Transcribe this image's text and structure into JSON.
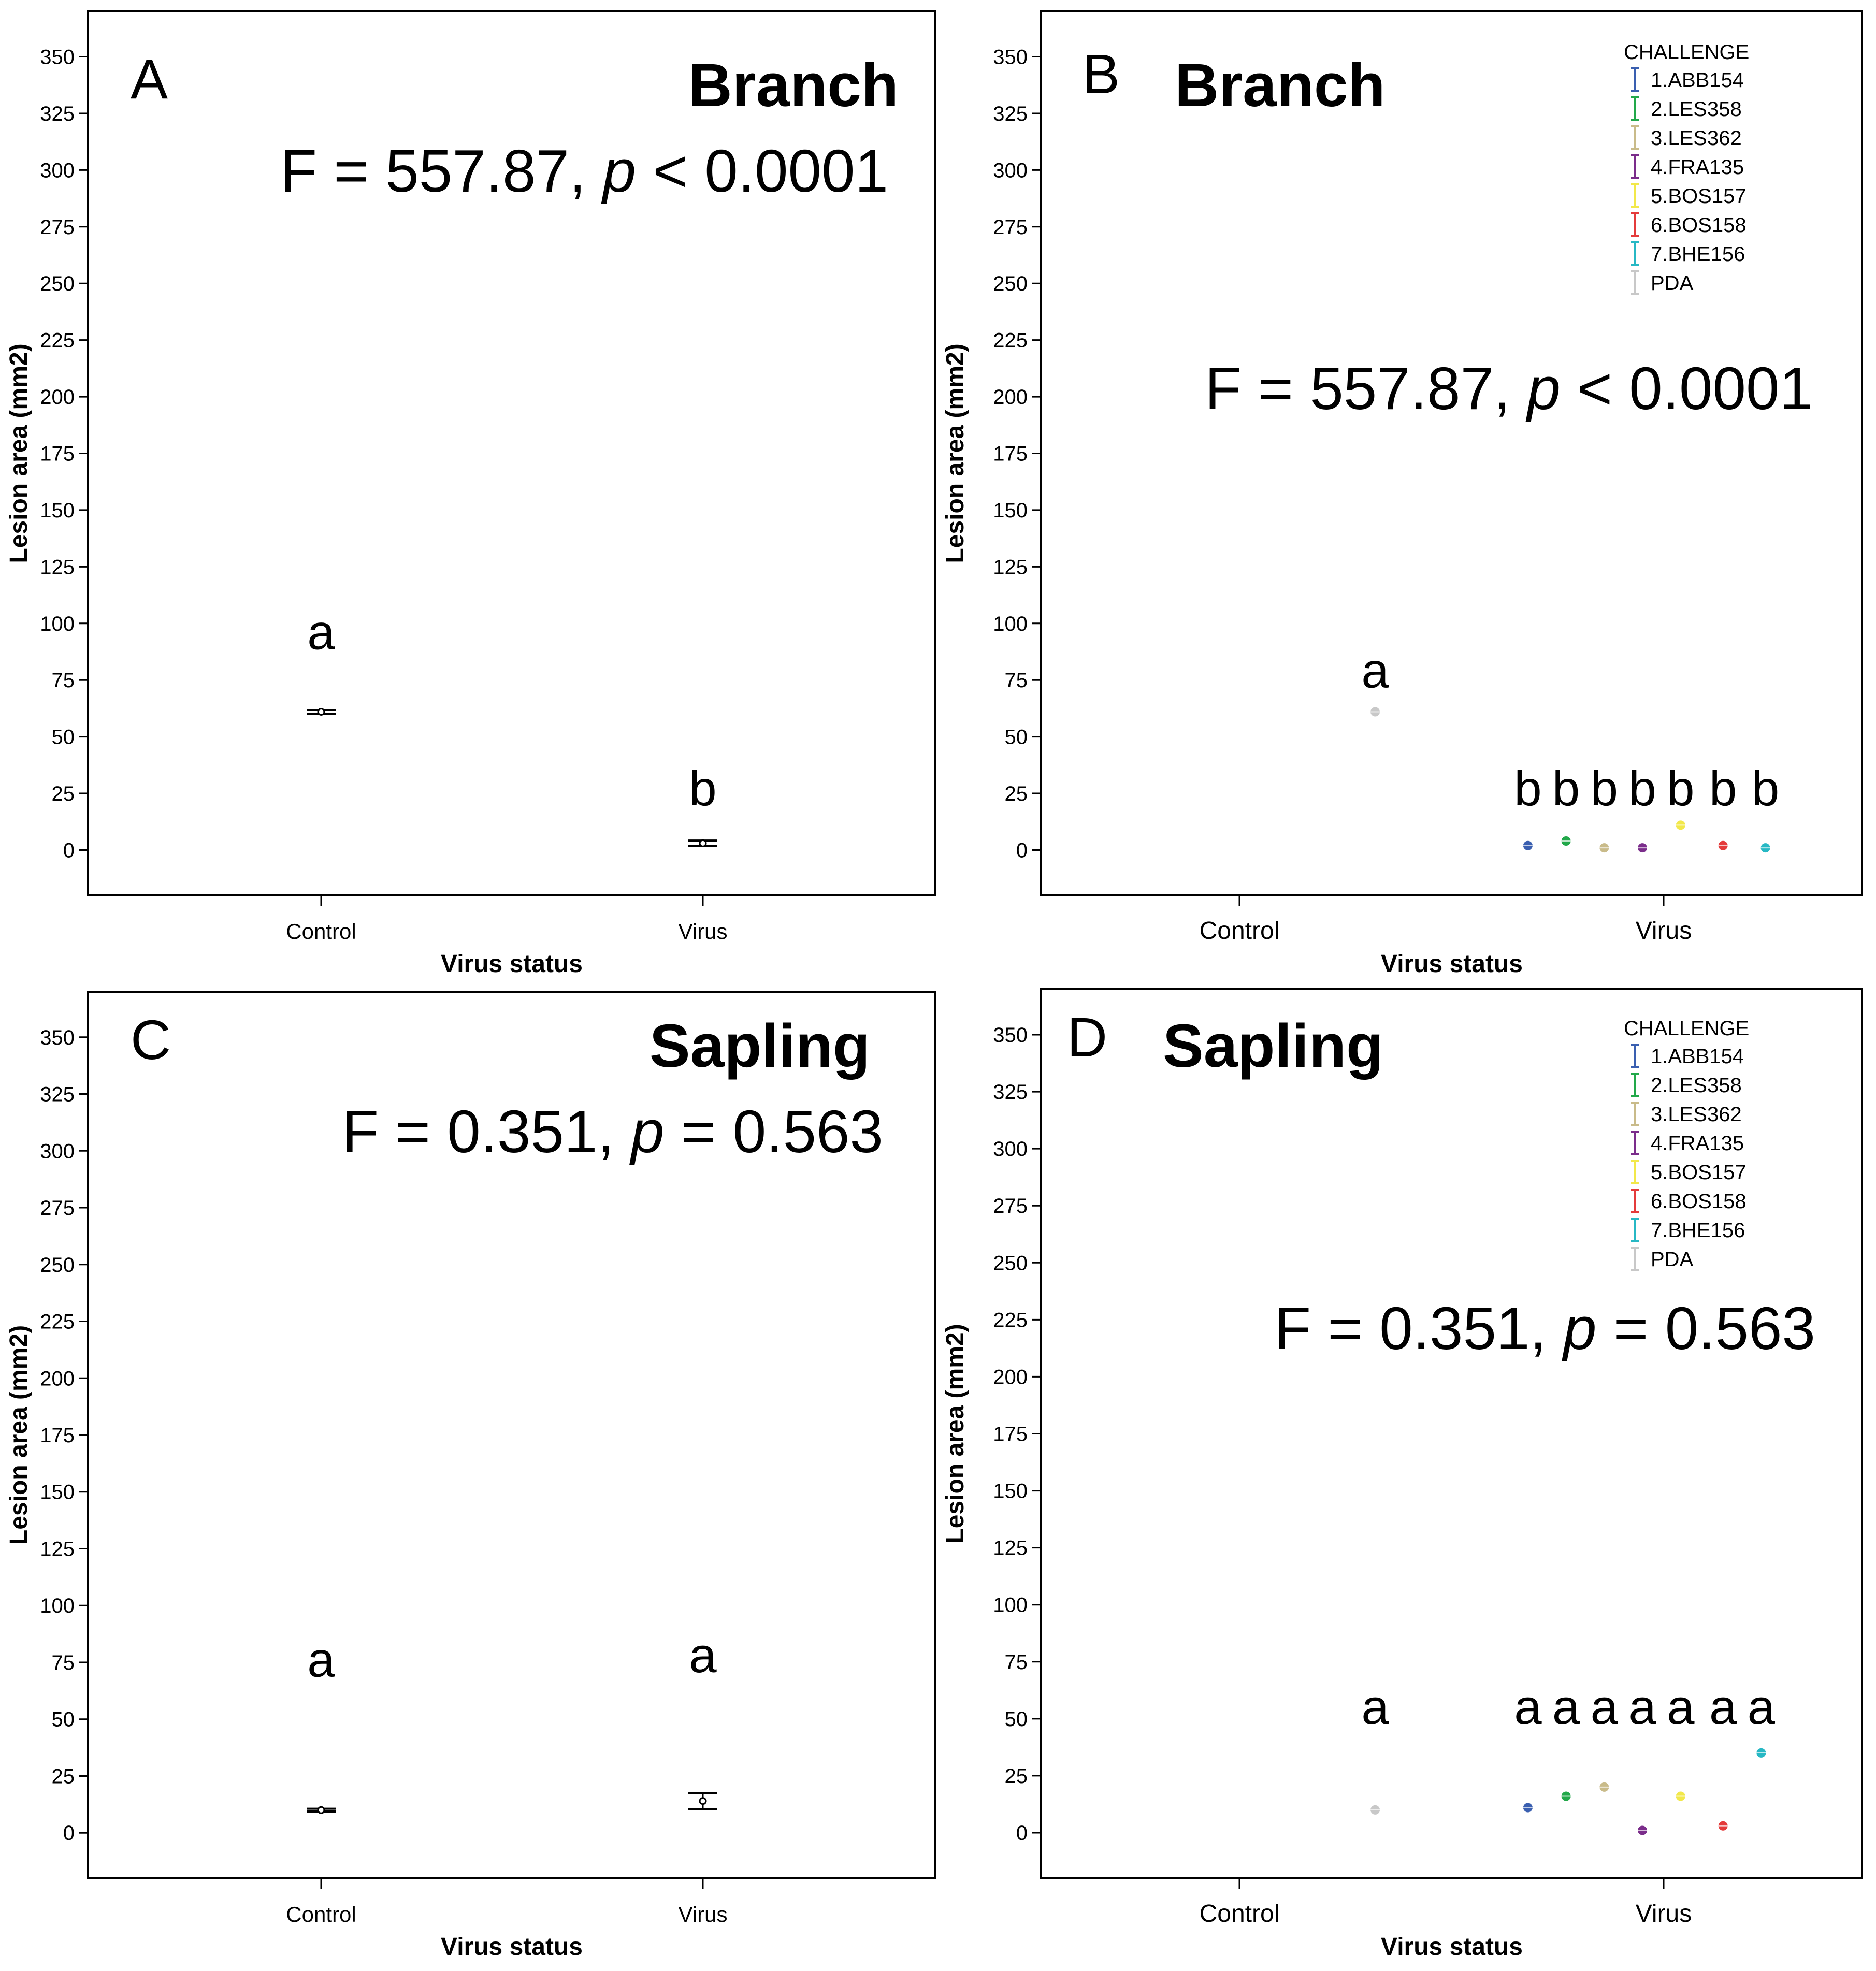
{
  "chart_data": [
    {
      "type": "scatter",
      "panel_label": "A",
      "title": "Branch",
      "stat": {
        "prefix": "F = 557.87, ",
        "p": "p",
        "suffix": " < 0.0001"
      },
      "ylabel": "Lesion area (mm2)",
      "xlabel": "Virus status",
      "ylim": [
        -20,
        370
      ],
      "yticks": [
        0,
        25,
        50,
        75,
        100,
        125,
        150,
        175,
        200,
        225,
        250,
        275,
        300,
        325,
        350
      ],
      "categories": [
        "Control",
        "Virus"
      ],
      "legend": null,
      "points": [
        {
          "cat": 0,
          "offset": 0,
          "y": 61,
          "err": 0.8,
          "color": "#000000",
          "sig": "a",
          "sig_y": 96
        },
        {
          "cat": 1,
          "offset": 0,
          "y": 3,
          "err": 1.2,
          "color": "#000000",
          "sig": "b",
          "sig_y": 27
        }
      ]
    },
    {
      "type": "scatter",
      "panel_label": "B",
      "title": "Branch",
      "stat": {
        "prefix": "F = 557.87, ",
        "p": "p",
        "suffix": " < 0.0001"
      },
      "ylabel": "Lesion area (mm2)",
      "xlabel": "Virus status",
      "ylim": [
        -20,
        370
      ],
      "yticks": [
        0,
        25,
        50,
        75,
        100,
        125,
        150,
        175,
        200,
        225,
        250,
        275,
        300,
        325,
        350
      ],
      "categories": [
        "Control",
        "Virus"
      ],
      "legend": {
        "title": "CHALLENGE",
        "items": [
          {
            "label": "1.ABB154",
            "color": "#3a5fb0"
          },
          {
            "label": "2.LES358",
            "color": "#22a84a"
          },
          {
            "label": "3.LES362",
            "color": "#c9bb8a"
          },
          {
            "label": "4.FRA135",
            "color": "#7b2d8b"
          },
          {
            "label": "5.BOS157",
            "color": "#f2e84a"
          },
          {
            "label": "6.BOS158",
            "color": "#e43b3b"
          },
          {
            "label": "7.BHE156",
            "color": "#27b8c4"
          },
          {
            "label": "PDA",
            "color": "#c8c8c8"
          }
        ]
      },
      "points": [
        {
          "cat": 0,
          "offset": 0.32,
          "y": 61,
          "err": 0,
          "color": "#c8c8c8",
          "sig": "a",
          "sig_y": 79
        },
        {
          "cat": 1,
          "offset": -0.32,
          "y": 2,
          "err": 0,
          "color": "#3a5fb0",
          "sig": "b",
          "sig_y": 27
        },
        {
          "cat": 1,
          "offset": -0.23,
          "y": 4,
          "err": 0,
          "color": "#22a84a",
          "sig": "b",
          "sig_y": 27
        },
        {
          "cat": 1,
          "offset": -0.14,
          "y": 1,
          "err": 0,
          "color": "#c9bb8a",
          "sig": "b",
          "sig_y": 27
        },
        {
          "cat": 1,
          "offset": -0.05,
          "y": 1,
          "err": 0,
          "color": "#7b2d8b",
          "sig": "b",
          "sig_y": 27
        },
        {
          "cat": 1,
          "offset": 0.04,
          "y": 11,
          "err": 0,
          "color": "#f2e84a",
          "sig": "b",
          "sig_y": 27
        },
        {
          "cat": 1,
          "offset": 0.14,
          "y": 2,
          "err": 0,
          "color": "#e43b3b",
          "sig": "b",
          "sig_y": 27
        },
        {
          "cat": 1,
          "offset": 0.24,
          "y": 1,
          "err": 0,
          "color": "#27b8c4",
          "sig": "b",
          "sig_y": 27
        }
      ]
    },
    {
      "type": "scatter",
      "panel_label": "C",
      "title": "Sapling",
      "stat": {
        "prefix": "F = 0.351, ",
        "p": "p",
        "suffix": " = 0.563"
      },
      "ylabel": "Lesion area (mm2)",
      "xlabel": "Virus status",
      "ylim": [
        -20,
        370
      ],
      "yticks": [
        0,
        25,
        50,
        75,
        100,
        125,
        150,
        175,
        200,
        225,
        250,
        275,
        300,
        325,
        350
      ],
      "categories": [
        "Control",
        "Virus"
      ],
      "legend": null,
      "points": [
        {
          "cat": 0,
          "offset": 0,
          "y": 10,
          "err": 0.6,
          "color": "#000000",
          "sig": "a",
          "sig_y": 76
        },
        {
          "cat": 1,
          "offset": 0,
          "y": 14,
          "err": 3.5,
          "color": "#000000",
          "sig": "a",
          "sig_y": 78
        }
      ]
    },
    {
      "type": "scatter",
      "panel_label": "D",
      "title": "Sapling",
      "stat": {
        "prefix": "F = 0.351, ",
        "p": "p",
        "suffix": " = 0.563"
      },
      "ylabel": "Lesion area (mm2)",
      "xlabel": "Virus status",
      "ylim": [
        -20,
        370
      ],
      "yticks": [
        0,
        25,
        50,
        75,
        100,
        125,
        150,
        175,
        200,
        225,
        250,
        275,
        300,
        325,
        350
      ],
      "categories": [
        "Control",
        "Virus"
      ],
      "legend": {
        "title": "CHALLENGE",
        "items": [
          {
            "label": "1.ABB154",
            "color": "#3a5fb0"
          },
          {
            "label": "2.LES358",
            "color": "#22a84a"
          },
          {
            "label": "3.LES362",
            "color": "#c9bb8a"
          },
          {
            "label": "4.FRA135",
            "color": "#7b2d8b"
          },
          {
            "label": "5.BOS157",
            "color": "#f2e84a"
          },
          {
            "label": "6.BOS158",
            "color": "#e43b3b"
          },
          {
            "label": "7.BHE156",
            "color": "#27b8c4"
          },
          {
            "label": "PDA",
            "color": "#c8c8c8"
          }
        ]
      },
      "points": [
        {
          "cat": 0,
          "offset": 0.32,
          "y": 10,
          "err": 0,
          "color": "#c8c8c8",
          "sig": "a",
          "sig_y": 55
        },
        {
          "cat": 1,
          "offset": -0.32,
          "y": 11,
          "err": 0,
          "color": "#3a5fb0",
          "sig": "a",
          "sig_y": 55
        },
        {
          "cat": 1,
          "offset": -0.23,
          "y": 16,
          "err": 0,
          "color": "#22a84a",
          "sig": "a",
          "sig_y": 55
        },
        {
          "cat": 1,
          "offset": -0.14,
          "y": 20,
          "err": 0,
          "color": "#c9bb8a",
          "sig": "a",
          "sig_y": 55
        },
        {
          "cat": 1,
          "offset": -0.05,
          "y": 1,
          "err": 0,
          "color": "#7b2d8b",
          "sig": "a",
          "sig_y": 55
        },
        {
          "cat": 1,
          "offset": 0.04,
          "y": 16,
          "err": 0,
          "color": "#f2e84a",
          "sig": "a",
          "sig_y": 55
        },
        {
          "cat": 1,
          "offset": 0.14,
          "y": 3,
          "err": 0,
          "color": "#e43b3b",
          "sig": "a",
          "sig_y": 55
        },
        {
          "cat": 1,
          "offset": 0.23,
          "y": 35,
          "err": 0,
          "color": "#27b8c4",
          "sig": "a",
          "sig_y": 55
        }
      ]
    }
  ]
}
